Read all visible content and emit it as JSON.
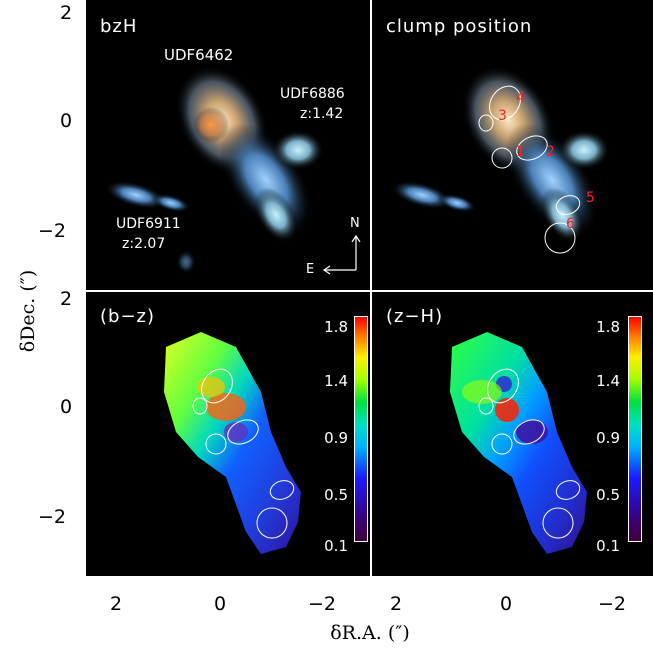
{
  "panels": {
    "top_left": {
      "title": "bzH",
      "labels": {
        "main": "UDF6462",
        "obj2_name": "UDF6886",
        "obj2_z": "z:1.42",
        "obj3_name": "UDF6911",
        "obj3_z": "z:2.07",
        "compass_n": "N",
        "compass_e": "E"
      }
    },
    "top_right": {
      "title": "clump position",
      "clumps": [
        "1",
        "2",
        "3",
        "4",
        "5",
        "6"
      ]
    },
    "bottom_left": {
      "title": "(b−z)",
      "colorbar": [
        "1.8",
        "1.4",
        "0.9",
        "0.5",
        "0.1"
      ]
    },
    "bottom_right": {
      "title": "(z−H)",
      "colorbar": [
        "1.8",
        "1.4",
        "0.9",
        "0.5",
        "0.1"
      ]
    }
  },
  "axes": {
    "ylabel": "δDec. (″)",
    "xlabel": "δR.A. (″)",
    "yticks_top": [
      "2",
      "0",
      "−2"
    ],
    "yticks_bottom": [
      "2",
      "0",
      "−2"
    ],
    "xticks": [
      "2",
      "0",
      "−2"
    ]
  },
  "colors": {
    "clump_label": "#ff2020",
    "ellipse": "#ffffff"
  }
}
